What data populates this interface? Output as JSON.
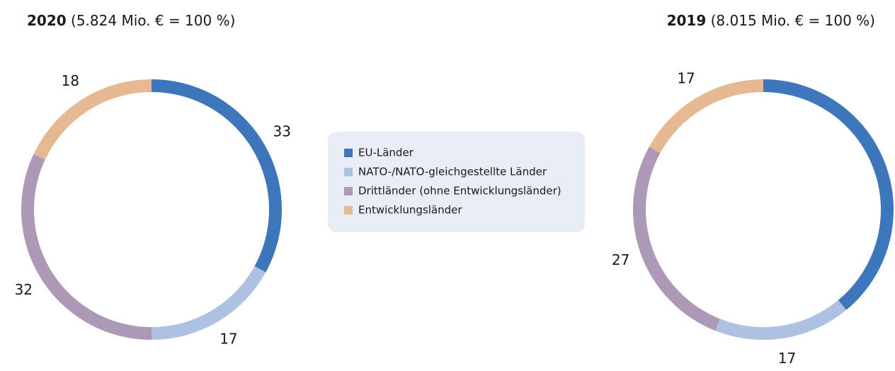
{
  "chart_data": [
    {
      "type": "pie",
      "title": "2020",
      "subtitle": "(5.824 Mio. € = 100 %)",
      "categories": [
        "EU-Länder",
        "NATO-/NATO-gleichgestellte Länder",
        "Drittländer (ohne Entwicklungsländer)",
        "Entwicklungsländer"
      ],
      "values": [
        33,
        17,
        32,
        18
      ],
      "colors": [
        "#3d76bb",
        "#afc1e2",
        "#ab99b6",
        "#e5b991"
      ]
    },
    {
      "type": "pie",
      "title": "2019",
      "subtitle": "(8.015 Mio. € = 100 %)",
      "categories": [
        "EU-Länder",
        "NATO-/NATO-gleichgestellte Länder",
        "Drittländer (ohne Entwicklungsländer)",
        "Entwicklungsländer"
      ],
      "values": [
        39,
        17,
        27,
        17
      ],
      "colors": [
        "#3d76bb",
        "#afc1e2",
        "#ab99b6",
        "#e5b991"
      ]
    }
  ]
}
